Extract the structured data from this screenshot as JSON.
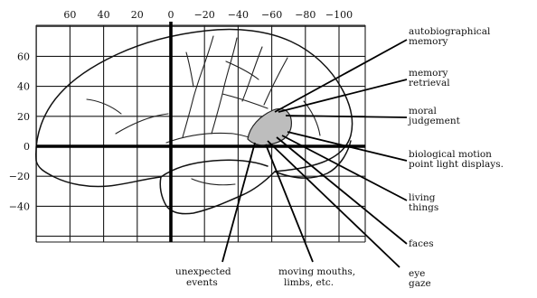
{
  "x_axis_ticks": [
    "60",
    "40",
    "20",
    "0",
    "−20",
    "−40",
    "−60",
    "−80",
    "−100"
  ],
  "y_axis_ticks": [
    "60",
    "40",
    "20",
    "0",
    "−20",
    "−40"
  ],
  "callouts": {
    "autobiographical_memory": [
      "autobiographical",
      "memory"
    ],
    "memory_retrieval": [
      "memory",
      "retrieval"
    ],
    "moral_judgement": [
      "moral",
      "judgement"
    ],
    "biological_motion": [
      "biological motion",
      "point light displays."
    ],
    "living_things": [
      "living",
      "things"
    ],
    "faces": [
      "faces"
    ],
    "eye_gaze": [
      "eye",
      "gaze"
    ],
    "unexpected_events": [
      "unexpected",
      "events"
    ],
    "moving_mouths": [
      "moving mouths,",
      "limbs, etc."
    ]
  },
  "colors": {
    "line": "#000000",
    "region_fill": "#bdbdbd",
    "background": "#ffffff"
  }
}
